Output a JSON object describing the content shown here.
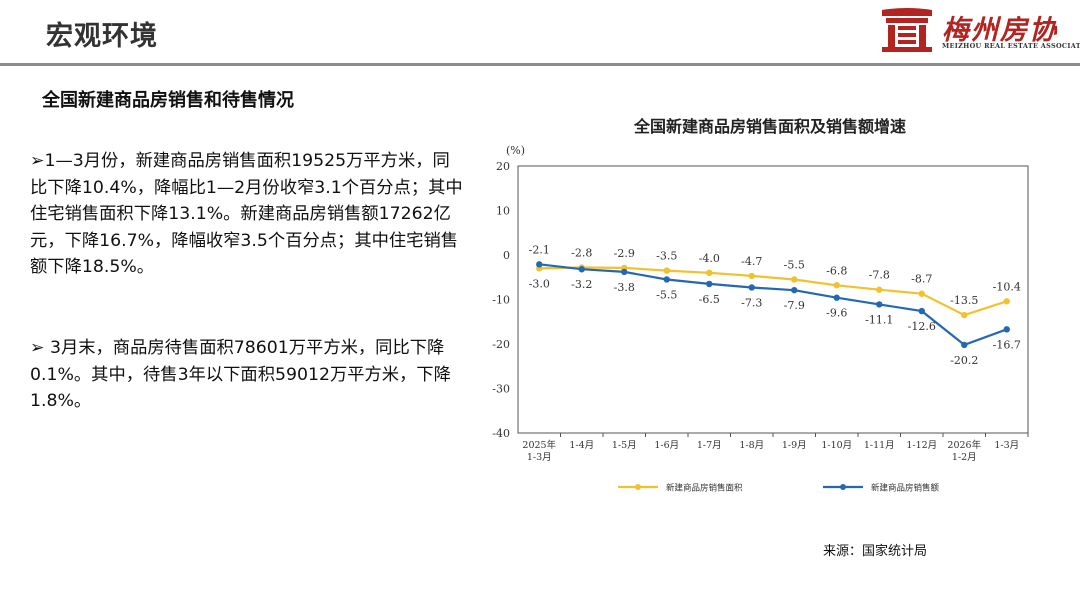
{
  "header": {
    "title": "宏观环境",
    "logo": {
      "name": "梅州房协",
      "sub": "MEIZHOU REAL ESTATE ASSOCIATION"
    }
  },
  "section_title": "全国新建商品房销售和待售情况",
  "paragraphs": [
    "➢1—3月份，新建商品房销售面积19525万平方米，同比下降10.4%，降幅比1—2月份收窄3.1个百分点；其中住宅销售面积下降13.1%。新建商品房销售额17262亿元，下降16.7%，降幅收窄3.5个百分点；其中住宅销售额下降18.5%。",
    "➢ 3月末，商品房待售面积78601万平方米，同比下降0.1%。其中，待售3年以下面积59012万平方米，下降1.8%。"
  ],
  "source": "来源：国家统计局",
  "colors": {
    "area": "#f2c12e",
    "sales": "#2468b4",
    "header_line": "#8c8c8c",
    "logo_red": "#b3231f"
  },
  "chart_data": {
    "type": "line",
    "title": "全国新建商品房销售面积及销售额增速",
    "y_unit": "(%)",
    "ylim": [
      -40,
      20
    ],
    "yticks": [
      20,
      10,
      0,
      -10,
      -20,
      -30,
      -40
    ],
    "categories": [
      [
        "2025年",
        "1-3月"
      ],
      [
        "1-4月"
      ],
      [
        "1-5月"
      ],
      [
        "1-6月"
      ],
      [
        "1-7月"
      ],
      [
        "1-8月"
      ],
      [
        "1-9月"
      ],
      [
        "1-10月"
      ],
      [
        "1-11月"
      ],
      [
        "1-12月"
      ],
      [
        "2026年",
        "1-2月"
      ],
      [
        "1-3月"
      ]
    ],
    "series": [
      {
        "name": "新建商品房销售面积",
        "color": "#f2c12e",
        "label_position": "above",
        "values": [
          -3.0,
          -2.8,
          -2.9,
          -3.5,
          -4.0,
          -4.7,
          -5.5,
          -6.8,
          -7.8,
          -8.7,
          -13.5,
          -10.4
        ],
        "labels": [
          "-3.0",
          "-2.8",
          "-2.9",
          "-3.5",
          "-4.0",
          "-4.7",
          "-5.5",
          "-6.8",
          "-7.8",
          "-8.7",
          "-13.5",
          "-10.4"
        ]
      },
      {
        "name": "新建商品房销售额",
        "color": "#2468b4",
        "label_position": "below",
        "values": [
          -2.1,
          -3.2,
          -3.8,
          -5.5,
          -6.5,
          -7.3,
          -7.9,
          -9.6,
          -11.1,
          -12.6,
          -20.2,
          -16.7
        ],
        "labels": [
          "-2.1",
          "-3.2",
          "-3.8",
          "-5.5",
          "-6.5",
          "-7.3",
          "-7.9",
          "-9.6",
          "-11.1",
          "-12.6",
          "-20.2",
          "-16.7"
        ]
      }
    ],
    "label_overrides": [
      {
        "series": 0,
        "index": 0,
        "position": "below"
      },
      {
        "series": 1,
        "index": 0,
        "position": "above"
      }
    ],
    "grid": false,
    "legend_position": "bottom"
  }
}
